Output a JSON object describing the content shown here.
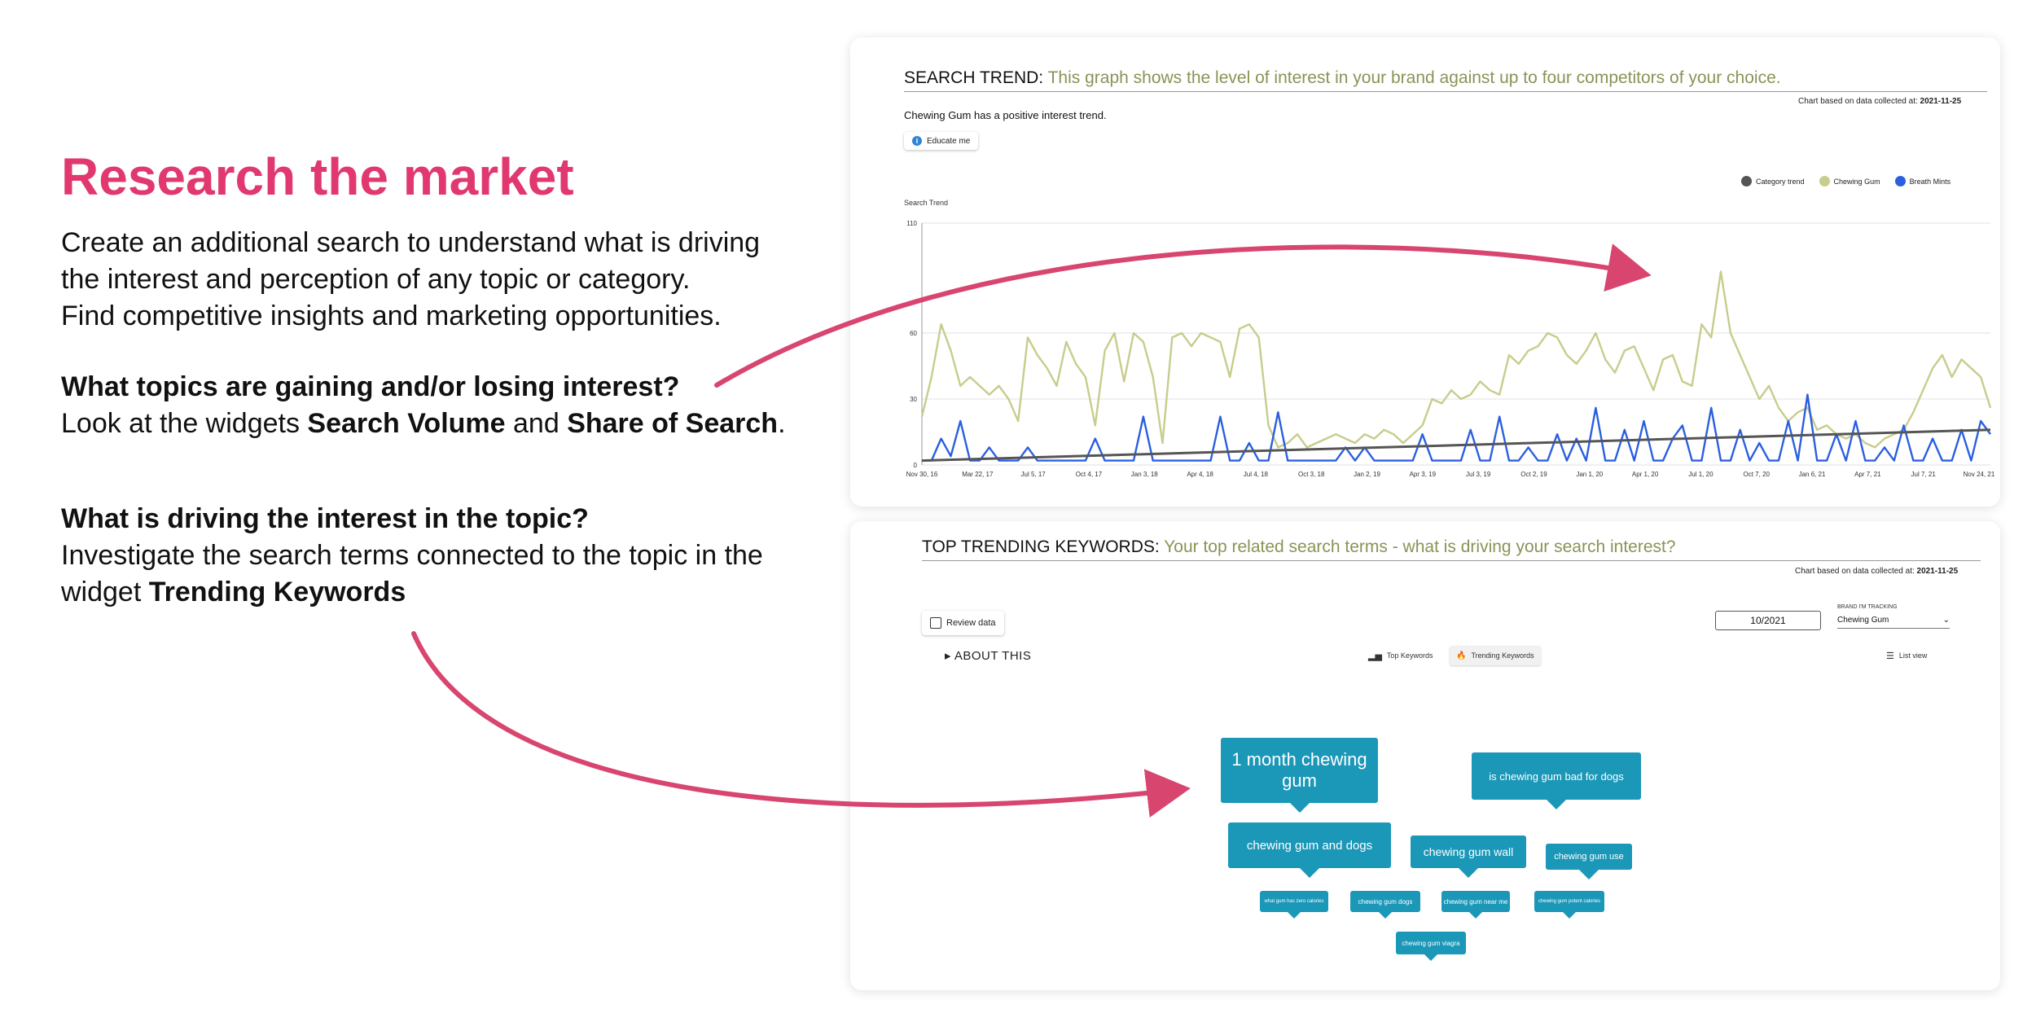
{
  "left": {
    "headline": "Research the market",
    "intro_lines": [
      "Create an additional search to understand what is driving",
      "the interest and perception of any topic or category.",
      "Find competitive insights and marketing opportunities."
    ],
    "q1": {
      "question": "What topics are gaining and/or losing interest?",
      "answer_pre": "Look at the widgets ",
      "answer_b1": "Search Volume",
      "answer_mid": " and ",
      "answer_b2": "Share of Search",
      "answer_post": "."
    },
    "q2": {
      "question": "What is driving the interest in the topic?",
      "answer_line1": "Investigate the search terms connected to the topic in the",
      "answer_pre": "widget ",
      "answer_b": "Trending Keywords"
    },
    "accent_color": "#e0386f"
  },
  "search_trend": {
    "title": "SEARCH TREND:",
    "subtitle": "This graph shows the level of interest in your brand against up to four competitors of your choice.",
    "note_label": "Chart based on data collected at:",
    "note_date": "2021-11-25",
    "insight": "Chewing Gum has a positive interest trend.",
    "educate_label": "Educate me",
    "educate_icon": "info-icon",
    "legend": [
      {
        "name": "Category trend",
        "color": "#555555"
      },
      {
        "name": "Chewing Gum",
        "color": "#c8cc8c"
      },
      {
        "name": "Breath Mints",
        "color": "#2b5fe0"
      }
    ]
  },
  "chart_data": {
    "type": "line",
    "ylabel": "Search Trend",
    "yticks": [
      0,
      30,
      60,
      110
    ],
    "ylim": [
      0,
      110
    ],
    "xticks": [
      "Nov 30, 16",
      "Mar 22, 17",
      "Jul 5, 17",
      "Oct 4, 17",
      "Jan 3, 18",
      "Apr 4, 18",
      "Jul 4, 18",
      "Oct 3, 18",
      "Jan 2, 19",
      "Apr 3, 19",
      "Jul 3, 19",
      "Oct 2, 19",
      "Jan 1, 20",
      "Apr 1, 20",
      "Jul 1, 20",
      "Oct 7, 20",
      "Jan 6, 21",
      "Apr 7, 21",
      "Jul 7, 21",
      "Nov 24, 21"
    ],
    "grid": true,
    "legend_position": "top-right",
    "series": [
      {
        "name": "Chewing Gum",
        "color": "#c8cc8c",
        "values": [
          22,
          40,
          64,
          52,
          36,
          40,
          36,
          32,
          36,
          30,
          20,
          58,
          50,
          44,
          36,
          56,
          46,
          40,
          18,
          52,
          60,
          38,
          60,
          56,
          40,
          10,
          58,
          60,
          54,
          60,
          58,
          56,
          40,
          62,
          64,
          58,
          18,
          8,
          10,
          14,
          8,
          10,
          12,
          14,
          12,
          10,
          14,
          12,
          16,
          14,
          10,
          14,
          18,
          30,
          28,
          34,
          30,
          32,
          38,
          34,
          32,
          50,
          46,
          52,
          54,
          60,
          58,
          50,
          46,
          52,
          60,
          48,
          42,
          52,
          54,
          44,
          34,
          48,
          50,
          38,
          36,
          64,
          58,
          88,
          60,
          50,
          40,
          30,
          36,
          26,
          20,
          24,
          26,
          16,
          18,
          14,
          12,
          14,
          10,
          8,
          12,
          14,
          16,
          24,
          34,
          44,
          50,
          40,
          48,
          44,
          40,
          26
        ]
      },
      {
        "name": "Breath Mints",
        "color": "#2b5fe0",
        "values": [
          2,
          2,
          12,
          4,
          20,
          2,
          2,
          8,
          2,
          2,
          2,
          8,
          2,
          2,
          2,
          2,
          2,
          2,
          12,
          2,
          2,
          2,
          2,
          22,
          2,
          2,
          2,
          2,
          2,
          2,
          2,
          22,
          2,
          2,
          10,
          2,
          2,
          24,
          2,
          2,
          2,
          2,
          2,
          2,
          8,
          2,
          8,
          2,
          2,
          2,
          2,
          2,
          14,
          2,
          2,
          2,
          2,
          16,
          2,
          2,
          22,
          2,
          2,
          8,
          2,
          2,
          14,
          2,
          12,
          2,
          26,
          2,
          2,
          16,
          2,
          20,
          2,
          2,
          12,
          18,
          2,
          2,
          26,
          2,
          2,
          16,
          2,
          10,
          2,
          2,
          20,
          2,
          32,
          2,
          2,
          14,
          2,
          20,
          2,
          2,
          8,
          2,
          18,
          2,
          2,
          12,
          2,
          2,
          16,
          2,
          20,
          14
        ]
      },
      {
        "name": "Category trend",
        "color": "#555555",
        "values": [
          2,
          16
        ]
      }
    ]
  },
  "trending": {
    "title": "TOP TRENDING KEYWORDS:",
    "subtitle": "Your top related search terms - what is driving your search interest?",
    "note_label": "Chart based on data collected at:",
    "note_date": "2021-11-25",
    "review_label": "Review data",
    "review_icon": "chip-icon",
    "date_value": "10/2021",
    "brand_label": "BRAND I'M TRACKING",
    "brand_value": "Chewing Gum",
    "about_label": "▸ ABOUT THIS",
    "tab_top": "Top Keywords",
    "tab_trending": "Trending Keywords",
    "list_view": "List view",
    "keywords": [
      "1 month chewing gum",
      "is chewing gum bad for dogs",
      "chewing gum and dogs",
      "chewing gum wall",
      "chewing gum use",
      "what gum has zero calories",
      "chewing gum dogs",
      "chewing gum near me",
      "chewing gum potent calories",
      "chewing gum viagra"
    ],
    "keyword_color": "#1b97b8"
  }
}
